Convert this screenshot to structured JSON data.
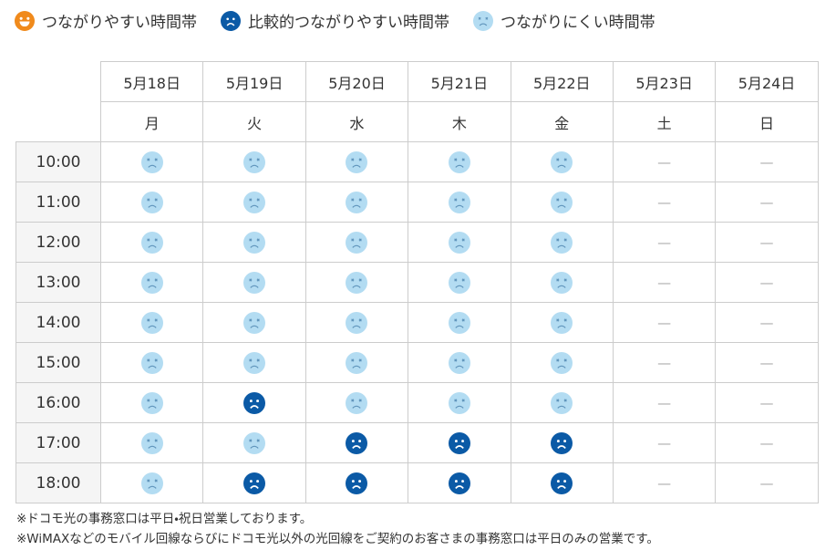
{
  "legend": [
    "つながりやすい時間帯",
    "比較的つながりやすい時間帯",
    "つながりにくい時間帯"
  ],
  "table": {
    "dates": [
      "5月18日",
      "5月19日",
      "5月20日",
      "5月21日",
      "5月22日",
      "5月23日",
      "5月24日"
    ],
    "weekdays": [
      "月",
      "火",
      "水",
      "木",
      "金",
      "土",
      "日"
    ],
    "rows": [
      {
        "time": "10:00",
        "cells": [
          2,
          2,
          2,
          2,
          2,
          "—",
          "—"
        ]
      },
      {
        "time": "11:00",
        "cells": [
          2,
          2,
          2,
          2,
          2,
          "—",
          "—"
        ]
      },
      {
        "time": "12:00",
        "cells": [
          2,
          2,
          2,
          2,
          2,
          "—",
          "—"
        ]
      },
      {
        "time": "13:00",
        "cells": [
          2,
          2,
          2,
          2,
          2,
          "—",
          "—"
        ]
      },
      {
        "time": "14:00",
        "cells": [
          2,
          2,
          2,
          2,
          2,
          "—",
          "—"
        ]
      },
      {
        "time": "15:00",
        "cells": [
          2,
          2,
          2,
          2,
          2,
          "—",
          "—"
        ]
      },
      {
        "time": "16:00",
        "cells": [
          2,
          1,
          2,
          2,
          2,
          "—",
          "—"
        ]
      },
      {
        "time": "17:00",
        "cells": [
          2,
          2,
          1,
          1,
          1,
          "—",
          "—"
        ]
      },
      {
        "time": "18:00",
        "cells": [
          2,
          1,
          1,
          1,
          1,
          "—",
          "—"
        ]
      }
    ]
  },
  "notes": [
    "※ドコモ光の事務窓口は平日・祝日営業しております。",
    "※WiMAXなどのモバイル回線ならびにドコモ光以外の光回線をご契約のお客さまの事務窓口は平日のみの営業です。"
  ]
}
